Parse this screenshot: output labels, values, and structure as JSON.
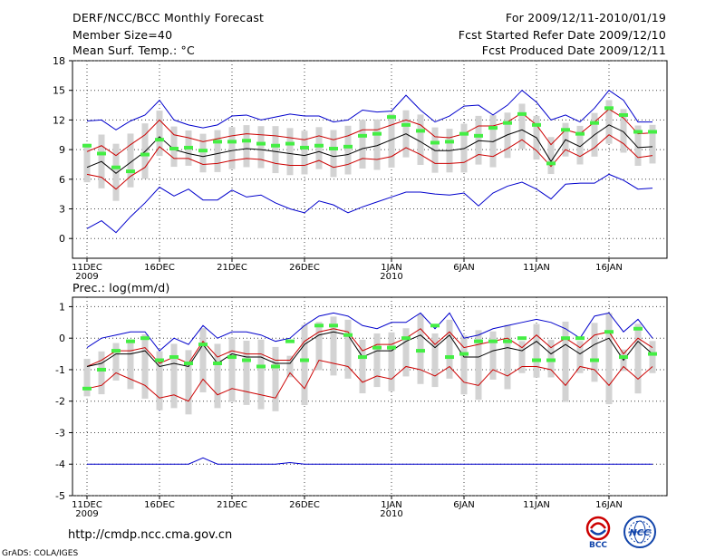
{
  "header": {
    "title": "DERF/NCC/BCC Monthly Forecast",
    "member_size": "Member Size=40",
    "variable": "Mean Surf. Temp.: °C",
    "period": "For 2009/12/11-2010/01/19",
    "fcst_started": "Fcst Started Refer Date 2009/12/10",
    "fcst_produced": "Fcst Produced Date 2009/12/11"
  },
  "footer": {
    "url": "http://cmdp.ncc.cma.gov.cn",
    "credit": "GrADS: COLA/IGES",
    "logo_left": "BCC",
    "logo_right": "NCC"
  },
  "colors": {
    "max_min_line": "#0000cc",
    "spread_line": "#cc0000",
    "mean_line": "#000000",
    "box": "#d3d3d3",
    "marker": "#44ee44"
  },
  "chart_data": [
    {
      "type": "line",
      "title": "Mean Surf. Temp.: °C",
      "ylim": [
        -2,
        18
      ],
      "yticks": [
        "18",
        "15",
        "12",
        "9",
        "6",
        "3",
        "0"
      ],
      "xticks": [
        {
          "day": 1,
          "label": "11DEC",
          "sub": "2009"
        },
        {
          "day": 6,
          "label": "16DEC",
          "sub": ""
        },
        {
          "day": 11,
          "label": "21DEC",
          "sub": ""
        },
        {
          "day": 16,
          "label": "26DEC",
          "sub": ""
        },
        {
          "day": 22,
          "label": "1JAN",
          "sub": "2010"
        },
        {
          "day": 27,
          "label": "6JAN",
          "sub": ""
        },
        {
          "day": 32,
          "label": "11JAN",
          "sub": ""
        },
        {
          "day": 37,
          "label": "16JAN",
          "sub": ""
        }
      ],
      "x": [
        1,
        2,
        3,
        4,
        5,
        6,
        7,
        8,
        9,
        10,
        11,
        12,
        13,
        14,
        15,
        16,
        17,
        18,
        19,
        20,
        21,
        22,
        23,
        24,
        25,
        26,
        27,
        28,
        29,
        30,
        31,
        32,
        33,
        34,
        35,
        36,
        37,
        38,
        39,
        40
      ],
      "series": [
        {
          "name": "max",
          "color": "#0000cc",
          "values": [
            11.9,
            12.0,
            11.0,
            11.9,
            12.5,
            14.0,
            12.0,
            11.5,
            11.2,
            11.5,
            12.4,
            12.5,
            12.0,
            12.3,
            12.6,
            12.4,
            12.4,
            11.8,
            12.0,
            13.0,
            12.8,
            12.9,
            14.5,
            13.0,
            11.8,
            12.4,
            13.4,
            13.5,
            12.5,
            13.5,
            15.0,
            13.8,
            12.0,
            12.5,
            11.8,
            13.2,
            15.0,
            14.0,
            11.8,
            11.8
          ]
        },
        {
          "name": "upper",
          "color": "#cc0000",
          "values": [
            8.8,
            9.4,
            8.4,
            9.5,
            10.5,
            12.0,
            10.5,
            10.2,
            9.8,
            10.1,
            10.4,
            10.6,
            10.5,
            10.4,
            10.2,
            10.0,
            10.4,
            10.0,
            10.4,
            11.0,
            11.0,
            11.5,
            12.0,
            11.5,
            10.3,
            10.2,
            10.6,
            11.4,
            11.4,
            11.8,
            12.7,
            11.5,
            9.5,
            11.0,
            10.6,
            11.8,
            13.1,
            12.2,
            10.6,
            10.7
          ]
        },
        {
          "name": "mean",
          "color": "#000000",
          "values": [
            7.2,
            7.8,
            6.6,
            7.7,
            8.8,
            10.3,
            9.0,
            8.6,
            8.3,
            8.6,
            8.9,
            9.1,
            9.0,
            8.8,
            8.6,
            8.4,
            8.8,
            8.3,
            8.5,
            9.1,
            9.4,
            10.0,
            10.6,
            9.8,
            8.9,
            8.9,
            9.1,
            9.9,
            9.8,
            10.5,
            11.0,
            10.2,
            7.8,
            10.0,
            9.3,
            10.5,
            11.5,
            10.8,
            9.2,
            9.3
          ]
        },
        {
          "name": "lower",
          "color": "#cc0000",
          "values": [
            6.5,
            6.2,
            5.0,
            6.3,
            7.2,
            9.3,
            8.1,
            8.1,
            7.5,
            7.6,
            7.9,
            8.1,
            8.0,
            7.6,
            7.4,
            7.4,
            7.9,
            7.2,
            7.5,
            8.1,
            8.0,
            8.3,
            9.2,
            8.5,
            7.6,
            7.6,
            7.7,
            8.5,
            8.3,
            9.1,
            10.0,
            8.9,
            7.3,
            9.0,
            8.3,
            9.2,
            10.5,
            9.6,
            8.2,
            8.4
          ]
        },
        {
          "name": "min",
          "color": "#0000cc",
          "values": [
            1.0,
            1.8,
            0.6,
            2.2,
            3.6,
            5.2,
            4.3,
            5.0,
            3.9,
            3.9,
            4.9,
            4.2,
            4.4,
            3.6,
            3.0,
            2.6,
            3.8,
            3.4,
            2.6,
            3.2,
            3.7,
            4.2,
            4.7,
            4.7,
            4.5,
            4.4,
            4.6,
            3.3,
            4.6,
            5.3,
            5.7,
            5.0,
            4.0,
            5.5,
            5.6,
            5.6,
            6.5,
            5.9,
            5.0,
            5.1
          ]
        }
      ],
      "markers": [
        9.4,
        8.6,
        7.2,
        6.8,
        8.5,
        10.0,
        9.1,
        9.2,
        8.9,
        9.8,
        9.8,
        9.9,
        9.6,
        9.4,
        9.6,
        9.2,
        9.4,
        9.1,
        9.3,
        10.4,
        10.6,
        12.3,
        11.5,
        10.9,
        9.7,
        9.8,
        10.6,
        10.4,
        11.2,
        11.7,
        12.6,
        11.5,
        7.6,
        11.0,
        10.6,
        11.7,
        13.2,
        12.5,
        10.8,
        10.8
      ]
    },
    {
      "type": "line",
      "title": "Prec.: log(mm/d)",
      "ylim": [
        -5,
        1.3
      ],
      "yticks": [
        "1",
        "0",
        "-1",
        "-2",
        "-3",
        "-4",
        "-5"
      ],
      "xticks": [
        {
          "day": 1,
          "label": "11DEC",
          "sub": "2009"
        },
        {
          "day": 6,
          "label": "16DEC",
          "sub": ""
        },
        {
          "day": 11,
          "label": "21DEC",
          "sub": ""
        },
        {
          "day": 16,
          "label": "26DEC",
          "sub": ""
        },
        {
          "day": 22,
          "label": "1JAN",
          "sub": "2010"
        },
        {
          "day": 27,
          "label": "6JAN",
          "sub": ""
        },
        {
          "day": 32,
          "label": "11JAN",
          "sub": ""
        },
        {
          "day": 37,
          "label": "16JAN",
          "sub": ""
        }
      ],
      "x": [
        1,
        2,
        3,
        4,
        5,
        6,
        7,
        8,
        9,
        10,
        11,
        12,
        13,
        14,
        15,
        16,
        17,
        18,
        19,
        20,
        21,
        22,
        23,
        24,
        25,
        26,
        27,
        28,
        29,
        30,
        31,
        32,
        33,
        34,
        35,
        36,
        37,
        38,
        39,
        40
      ],
      "series": [
        {
          "name": "max",
          "color": "#0000cc",
          "values": [
            -0.3,
            0.0,
            0.1,
            0.2,
            0.2,
            -0.4,
            0.0,
            -0.2,
            0.4,
            0.0,
            0.2,
            0.2,
            0.1,
            -0.1,
            0.0,
            0.4,
            0.7,
            0.8,
            0.7,
            0.4,
            0.3,
            0.5,
            0.5,
            0.8,
            0.3,
            0.8,
            0.0,
            0.1,
            0.3,
            0.4,
            0.5,
            0.6,
            0.5,
            0.3,
            0.0,
            0.7,
            0.8,
            0.2,
            0.6,
            0.0
          ]
        },
        {
          "name": "upper",
          "color": "#cc0000",
          "values": [
            -0.9,
            -0.7,
            -0.4,
            -0.4,
            -0.3,
            -0.8,
            -0.6,
            -0.8,
            -0.1,
            -0.6,
            -0.4,
            -0.5,
            -0.5,
            -0.7,
            -0.7,
            -0.1,
            0.2,
            0.3,
            0.2,
            -0.4,
            -0.2,
            -0.2,
            0.0,
            0.3,
            -0.2,
            0.2,
            -0.3,
            -0.2,
            -0.1,
            0.0,
            -0.3,
            0.1,
            -0.3,
            0.0,
            -0.3,
            0.1,
            0.2,
            -0.5,
            0.0,
            -0.3
          ]
        },
        {
          "name": "mean",
          "color": "#000000",
          "values": [
            -0.9,
            -0.8,
            -0.5,
            -0.5,
            -0.4,
            -0.9,
            -0.8,
            -0.9,
            -0.2,
            -0.8,
            -0.5,
            -0.6,
            -0.6,
            -0.8,
            -0.8,
            -0.2,
            0.1,
            0.2,
            0.1,
            -0.6,
            -0.4,
            -0.4,
            -0.1,
            0.1,
            -0.3,
            0.1,
            -0.6,
            -0.6,
            -0.4,
            -0.3,
            -0.4,
            -0.1,
            -0.5,
            -0.2,
            -0.5,
            -0.2,
            0.0,
            -0.7,
            -0.1,
            -0.5
          ]
        },
        {
          "name": "lower",
          "color": "#cc0000",
          "values": [
            -1.6,
            -1.5,
            -1.1,
            -1.3,
            -1.5,
            -1.9,
            -1.8,
            -2.0,
            -1.3,
            -1.8,
            -1.6,
            -1.7,
            -1.8,
            -1.9,
            -1.1,
            -1.6,
            -0.7,
            -0.8,
            -0.9,
            -1.4,
            -1.2,
            -1.3,
            -0.9,
            -1.0,
            -1.2,
            -0.9,
            -1.4,
            -1.5,
            -1.0,
            -1.2,
            -0.9,
            -0.9,
            -1.0,
            -1.5,
            -0.9,
            -1.0,
            -1.5,
            -0.9,
            -1.3,
            -0.9
          ]
        },
        {
          "name": "min",
          "color": "#0000cc",
          "values": [
            -4,
            -4,
            -4,
            -4,
            -4,
            -4,
            -4,
            -4,
            -3.8,
            -4,
            -4,
            -4,
            -4,
            -4,
            -3.95,
            -4,
            -4,
            -4,
            -4,
            -4,
            -4,
            -4,
            -4,
            -4,
            -4,
            -4,
            -4,
            -4,
            -4,
            -4,
            -4,
            -4,
            -4,
            -4,
            -4,
            -4,
            -4,
            -4,
            -4,
            -4
          ]
        }
      ],
      "markers": [
        -1.6,
        -1.0,
        -0.4,
        -0.1,
        0.0,
        -0.7,
        -0.6,
        -0.8,
        -0.2,
        -0.8,
        -0.6,
        -0.7,
        -0.9,
        -0.9,
        -0.1,
        -0.7,
        0.4,
        0.4,
        0.1,
        -0.6,
        -0.3,
        -0.3,
        0.0,
        -0.4,
        0.4,
        -0.6,
        -0.5,
        -0.1,
        -0.1,
        -0.1,
        0.0,
        -0.7,
        -0.7,
        0.0,
        0.0,
        -0.7,
        0.2,
        -0.6,
        0.3,
        -0.5
      ]
    }
  ]
}
